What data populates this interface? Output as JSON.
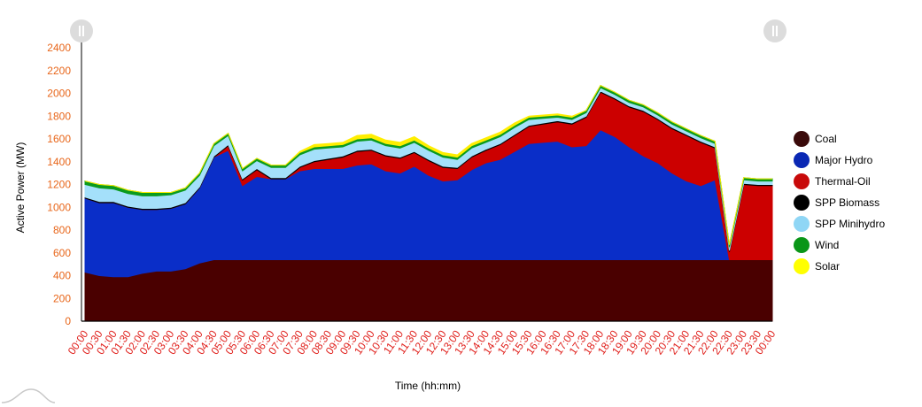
{
  "chart_data": {
    "type": "area",
    "stacked": true,
    "xlabel": "Time (hh:mm)",
    "ylabel": "Active Power (MW)",
    "ylim": [
      0,
      2400
    ],
    "yticks": [
      0,
      200,
      400,
      600,
      800,
      1000,
      1200,
      1400,
      1600,
      1800,
      2000,
      2200,
      2400
    ],
    "categories": [
      "00:00",
      "00:30",
      "01:00",
      "01:30",
      "02:00",
      "02:30",
      "03:00",
      "03:30",
      "04:00",
      "04:30",
      "05:00",
      "05:30",
      "06:00",
      "06:30",
      "07:00",
      "07:30",
      "08:00",
      "08:30",
      "09:00",
      "09:30",
      "10:00",
      "10:30",
      "11:00",
      "11:30",
      "12:00",
      "12:30",
      "13:00",
      "13:30",
      "14:00",
      "14:30",
      "15:00",
      "15:30",
      "16:00",
      "16:30",
      "17:00",
      "17:30",
      "18:00",
      "18:30",
      "19:00",
      "19:30",
      "20:00",
      "20:30",
      "21:00",
      "21:30",
      "22:00",
      "22:30",
      "23:00",
      "23:30",
      "00:00"
    ],
    "legend_position": "right",
    "grid": false,
    "series": [
      {
        "name": "Coal",
        "color": "#4a0000",
        "legend_color": "#3a0a0a",
        "values": [
          430,
          400,
          390,
          390,
          420,
          440,
          440,
          460,
          510,
          540,
          540,
          540,
          540,
          540,
          540,
          540,
          540,
          540,
          540,
          540,
          540,
          540,
          540,
          540,
          540,
          540,
          540,
          540,
          540,
          540,
          540,
          540,
          540,
          540,
          540,
          540,
          540,
          540,
          540,
          540,
          540,
          540,
          540,
          540,
          540,
          540,
          540,
          540,
          540
        ]
      },
      {
        "name": "Major Hydro",
        "color": "#0a2ec8",
        "legend_color": "#0a28b4",
        "values": [
          650,
          640,
          650,
          610,
          560,
          540,
          550,
          570,
          660,
          900,
          960,
          650,
          730,
          710,
          710,
          780,
          800,
          800,
          800,
          830,
          840,
          780,
          760,
          820,
          740,
          690,
          700,
          790,
          850,
          880,
          950,
          1020,
          1030,
          1040,
          990,
          1000,
          1140,
          1080,
          990,
          910,
          850,
          760,
          690,
          650,
          700,
          0,
          0,
          0,
          0
        ]
      },
      {
        "name": "Thermal-Oil",
        "color": "#cc0000",
        "legend_color": "#c80a0a",
        "values": [
          0,
          0,
          0,
          0,
          0,
          0,
          0,
          0,
          0,
          0,
          40,
          50,
          60,
          0,
          0,
          30,
          60,
          80,
          100,
          120,
          120,
          130,
          130,
          120,
          130,
          120,
          100,
          110,
          110,
          130,
          140,
          150,
          160,
          170,
          200,
          250,
          330,
          330,
          350,
          390,
          380,
          390,
          400,
          380,
          280,
          70,
          660,
          650,
          650
        ]
      },
      {
        "name": "SPP Biomass",
        "color": "#000000",
        "legend_color": "#000000",
        "values": [
          10,
          10,
          10,
          10,
          10,
          10,
          10,
          10,
          10,
          10,
          10,
          10,
          10,
          10,
          10,
          10,
          10,
          10,
          10,
          10,
          10,
          10,
          10,
          10,
          10,
          10,
          10,
          10,
          10,
          10,
          10,
          10,
          10,
          10,
          10,
          10,
          10,
          10,
          10,
          10,
          10,
          10,
          10,
          10,
          10,
          10,
          10,
          10,
          10
        ]
      },
      {
        "name": "SPP Minihydro",
        "color": "#a4e0fa",
        "legend_color": "#8fd6f5",
        "values": [
          110,
          120,
          110,
          110,
          110,
          110,
          110,
          110,
          100,
          90,
          80,
          70,
          70,
          90,
          90,
          100,
          100,
          90,
          80,
          80,
          80,
          80,
          80,
          80,
          80,
          80,
          70,
          70,
          60,
          60,
          60,
          50,
          40,
          30,
          30,
          30,
          30,
          30,
          30,
          30,
          30,
          30,
          30,
          30,
          30,
          30,
          30,
          30,
          30
        ]
      },
      {
        "name": "Wind",
        "color": "#0a9a1e",
        "legend_color": "#0a9618",
        "values": [
          30,
          30,
          30,
          30,
          30,
          30,
          20,
          20,
          20,
          20,
          20,
          20,
          20,
          20,
          20,
          20,
          20,
          20,
          20,
          20,
          20,
          20,
          20,
          20,
          20,
          20,
          20,
          20,
          20,
          20,
          20,
          20,
          20,
          20,
          20,
          20,
          20,
          20,
          20,
          20,
          20,
          20,
          20,
          20,
          20,
          20,
          20,
          20,
          20
        ]
      },
      {
        "name": "Solar",
        "color": "#ffee00",
        "legend_color": "#ffff00",
        "values": [
          0,
          0,
          0,
          0,
          0,
          0,
          0,
          0,
          0,
          0,
          0,
          0,
          0,
          0,
          0,
          10,
          20,
          20,
          20,
          30,
          30,
          30,
          30,
          30,
          20,
          20,
          20,
          20,
          20,
          20,
          20,
          10,
          10,
          10,
          10,
          0,
          0,
          0,
          0,
          0,
          0,
          0,
          0,
          0,
          0,
          0,
          0,
          0,
          0
        ]
      }
    ]
  }
}
